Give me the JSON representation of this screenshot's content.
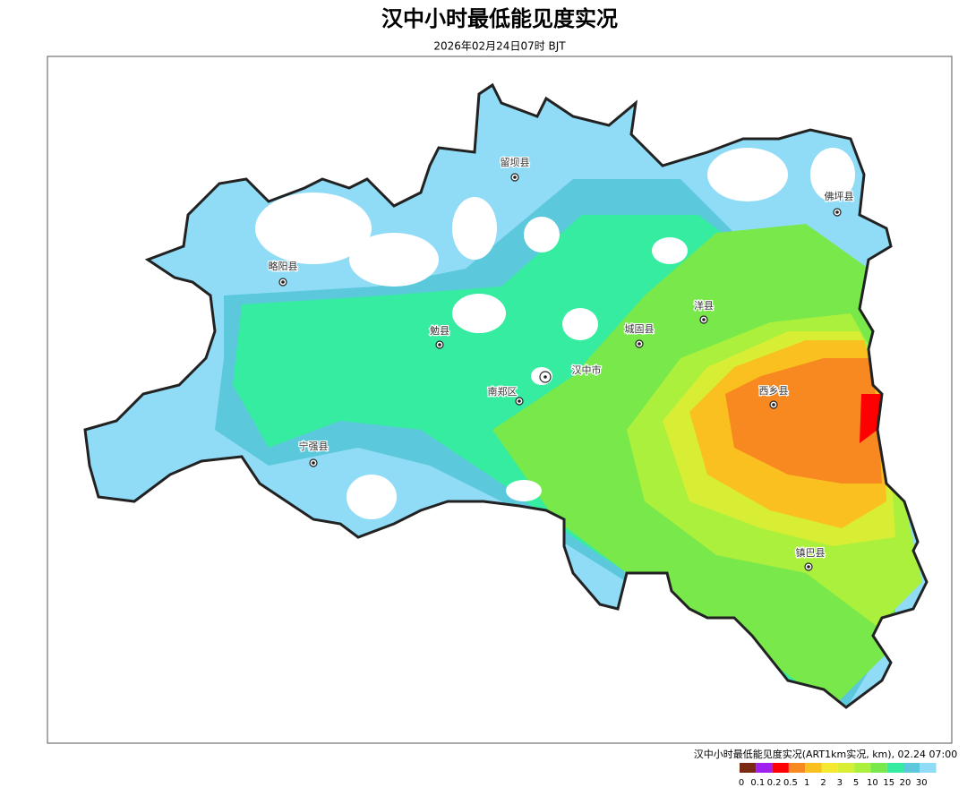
{
  "header": {
    "title": "汉中小时最低能见度实况",
    "subtitle": "2026年02月24日07时 BJT"
  },
  "places": [
    {
      "label": "留坝县"
    },
    {
      "label": "佛坪县"
    },
    {
      "label": "略阳县"
    },
    {
      "label": "洋县"
    },
    {
      "label": "勉县"
    },
    {
      "label": "城固县"
    },
    {
      "label": "汉中市"
    },
    {
      "label": "南郑区"
    },
    {
      "label": "西乡县"
    },
    {
      "label": "宁强县"
    },
    {
      "label": "镇巴县"
    }
  ],
  "legend": {
    "title": "汉中小时最低能见度实况(ART1km实况, km), 02.24 07:00",
    "labels": [
      "0",
      "0.1",
      "0.2",
      "0.5",
      "1",
      "2",
      "3",
      "5",
      "10",
      "15",
      "20",
      "30"
    ],
    "colors": [
      "#7a2a10",
      "#a020f0",
      "#ff0000",
      "#f88820",
      "#fac020",
      "#f4e830",
      "#d8ee34",
      "#aaf03c",
      "#78e84a",
      "#36eca0",
      "#5cc8dc",
      "#90dcf6"
    ]
  }
}
